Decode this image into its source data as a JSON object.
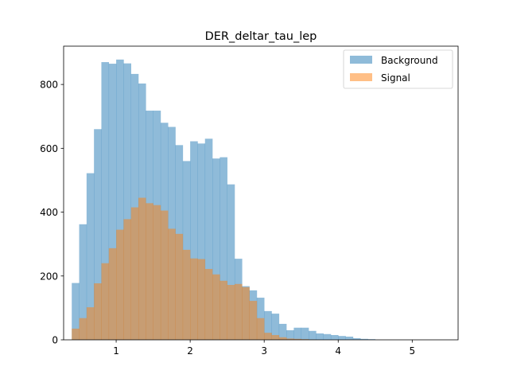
{
  "chart_data": {
    "type": "bar",
    "title": "DER_deltar_tau_lep",
    "xlabel": "",
    "ylabel": "",
    "xlim": [
      0.29,
      5.62
    ],
    "ylim": [
      0,
      920
    ],
    "xticks": [
      1,
      2,
      3,
      4,
      5
    ],
    "yticks": [
      0,
      200,
      400,
      600,
      800
    ],
    "bin_start": 0.4,
    "bin_width": 0.1,
    "legend_position": "top-right",
    "series": [
      {
        "name": "Background",
        "color": "#1f77b4",
        "alpha": 0.5,
        "values": [
          178,
          362,
          522,
          660,
          870,
          865,
          878,
          866,
          833,
          803,
          718,
          718,
          680,
          667,
          610,
          560,
          622,
          615,
          630,
          568,
          572,
          487,
          254,
          168,
          155,
          132,
          90,
          82,
          50,
          30,
          38,
          38,
          28,
          20,
          18,
          15,
          12,
          10,
          5,
          3,
          2
        ]
      },
      {
        "name": "Signal",
        "color": "#ff7f0e",
        "alpha": 0.5,
        "values": [
          35,
          68,
          102,
          177,
          240,
          287,
          345,
          378,
          415,
          445,
          428,
          422,
          405,
          348,
          332,
          282,
          255,
          253,
          222,
          205,
          185,
          172,
          175,
          165,
          122,
          68,
          22,
          15,
          8,
          4,
          3,
          2,
          1,
          0,
          0,
          0,
          0,
          0,
          0,
          0,
          0
        ]
      }
    ]
  }
}
